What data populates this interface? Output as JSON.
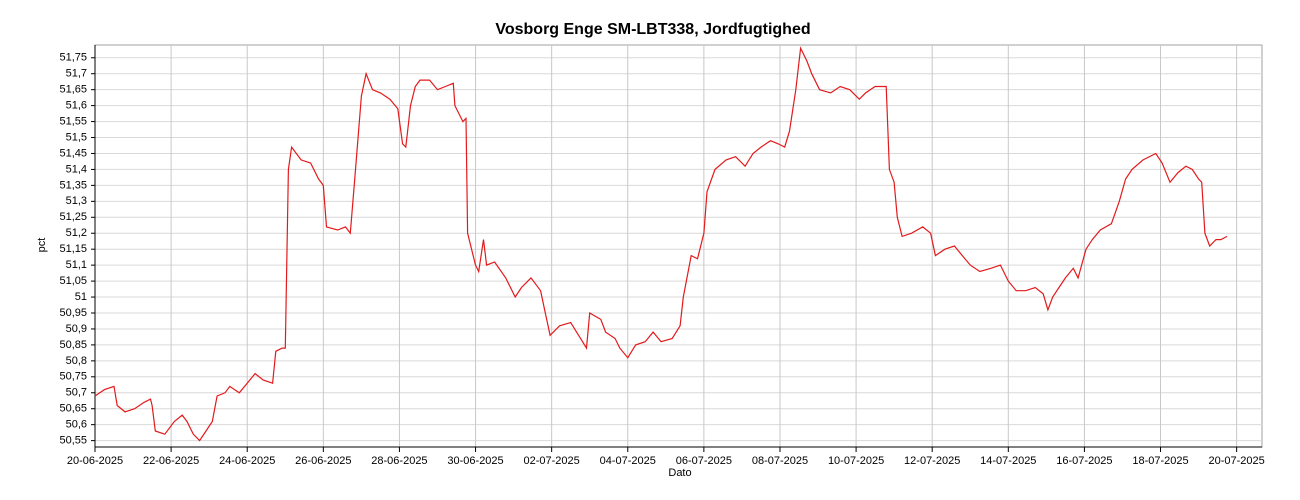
{
  "chart_data": {
    "type": "line",
    "title": "Vosborg Enge SM-LBT338, Jordfugtighed",
    "xlabel": "Dato",
    "ylabel": "pct",
    "grid": true,
    "xlim": [
      "2025-06-20T00:00",
      "2025-07-20T16:00"
    ],
    "ylim": [
      50.53,
      51.79
    ],
    "xticks": [
      {
        "value": "2025-06-20",
        "label": "20-06-2025"
      },
      {
        "value": "2025-06-22",
        "label": "22-06-2025"
      },
      {
        "value": "2025-06-24",
        "label": "24-06-2025"
      },
      {
        "value": "2025-06-26",
        "label": "26-06-2025"
      },
      {
        "value": "2025-06-28",
        "label": "28-06-2025"
      },
      {
        "value": "2025-06-30",
        "label": "30-06-2025"
      },
      {
        "value": "2025-07-02",
        "label": "02-07-2025"
      },
      {
        "value": "2025-07-04",
        "label": "04-07-2025"
      },
      {
        "value": "2025-07-06",
        "label": "06-07-2025"
      },
      {
        "value": "2025-07-08",
        "label": "08-07-2025"
      },
      {
        "value": "2025-07-10",
        "label": "10-07-2025"
      },
      {
        "value": "2025-07-12",
        "label": "12-07-2025"
      },
      {
        "value": "2025-07-14",
        "label": "14-07-2025"
      },
      {
        "value": "2025-07-16",
        "label": "16-07-2025"
      },
      {
        "value": "2025-07-18",
        "label": "18-07-2025"
      },
      {
        "value": "2025-07-20",
        "label": "20-07-2025"
      }
    ],
    "yticks": [
      {
        "value": 50.55,
        "label": "50,55"
      },
      {
        "value": 50.6,
        "label": "50,6"
      },
      {
        "value": 50.65,
        "label": "50,65"
      },
      {
        "value": 50.7,
        "label": "50,7"
      },
      {
        "value": 50.75,
        "label": "50,75"
      },
      {
        "value": 50.8,
        "label": "50,8"
      },
      {
        "value": 50.85,
        "label": "50,85"
      },
      {
        "value": 50.9,
        "label": "50,9"
      },
      {
        "value": 50.95,
        "label": "50,95"
      },
      51,
      {
        "value": 51.05,
        "label": "51,05"
      },
      {
        "value": 51.1,
        "label": "51,1"
      },
      {
        "value": 51.15,
        "label": "51,15"
      },
      {
        "value": 51.2,
        "label": "51,2"
      },
      {
        "value": 51.25,
        "label": "51,25"
      },
      {
        "value": 51.3,
        "label": "51,3"
      },
      {
        "value": 51.35,
        "label": "51,35"
      },
      {
        "value": 51.4,
        "label": "51,4"
      },
      {
        "value": 51.45,
        "label": "51,45"
      },
      {
        "value": 51.5,
        "label": "51,5"
      },
      {
        "value": 51.55,
        "label": "51,55"
      },
      {
        "value": 51.6,
        "label": "51,6"
      },
      {
        "value": 51.65,
        "label": "51,65"
      },
      {
        "value": 51.7,
        "label": "51,7"
      },
      {
        "value": 51.75,
        "label": "51,75"
      }
    ],
    "x": [
      "2025-06-20T00:00",
      "2025-06-20T06:00",
      "2025-06-20T12:00",
      "2025-06-20T14:00",
      "2025-06-20T19:00",
      "2025-06-21T01:00",
      "2025-06-21T07:00",
      "2025-06-21T11:00",
      "2025-06-21T12:00",
      "2025-06-21T14:00",
      "2025-06-21T20:00",
      "2025-06-22T02:00",
      "2025-06-22T07:00",
      "2025-06-22T10:00",
      "2025-06-22T14:00",
      "2025-06-22T18:00",
      "2025-06-22T22:00",
      "2025-06-23T02:00",
      "2025-06-23T05:00",
      "2025-06-23T10:00",
      "2025-06-23T13:00",
      "2025-06-23T19:00",
      "2025-06-24T00:00",
      "2025-06-24T05:00",
      "2025-06-24T10:00",
      "2025-06-24T16:00",
      "2025-06-24T18:00",
      "2025-06-24T22:00",
      "2025-06-25T00:00",
      "2025-06-25T02:00",
      "2025-06-25T04:00",
      "2025-06-25T10:00",
      "2025-06-25T16:00",
      "2025-06-25T21:00",
      "2025-06-26T00:00",
      "2025-06-26T02:00",
      "2025-06-26T09:00",
      "2025-06-26T14:00",
      "2025-06-26T17:00",
      "2025-06-26T20:00",
      "2025-06-27T00:00",
      "2025-06-27T03:00",
      "2025-06-27T07:00",
      "2025-06-27T12:00",
      "2025-06-27T18:00",
      "2025-06-27T23:00",
      "2025-06-28T02:00",
      "2025-06-28T04:00",
      "2025-06-28T07:00",
      "2025-06-28T10:00",
      "2025-06-28T13:00",
      "2025-06-28T19:00",
      "2025-06-29T00:00",
      "2025-06-29T05:00",
      "2025-06-29T10:00",
      "2025-06-29T11:00",
      "2025-06-29T16:00",
      "2025-06-29T18:00",
      "2025-06-29T19:00",
      "2025-06-30T00:00",
      "2025-06-30T02:00",
      "2025-06-30T05:00",
      "2025-06-30T07:00",
      "2025-06-30T12:00",
      "2025-06-30T19:00",
      "2025-07-01T01:00",
      "2025-07-01T05:00",
      "2025-07-01T11:00",
      "2025-07-01T17:00",
      "2025-07-01T20:00",
      "2025-07-01T23:00",
      "2025-07-02T05:00",
      "2025-07-02T12:00",
      "2025-07-02T17:00",
      "2025-07-02T22:00",
      "2025-07-03T00:00",
      "2025-07-03T07:00",
      "2025-07-03T10:00",
      "2025-07-03T16:00",
      "2025-07-03T19:00",
      "2025-07-04T00:00",
      "2025-07-04T05:00",
      "2025-07-04T11:00",
      "2025-07-04T16:00",
      "2025-07-04T21:00",
      "2025-07-05T04:00",
      "2025-07-05T09:00",
      "2025-07-05T11:00",
      "2025-07-05T16:00",
      "2025-07-05T20:00",
      "2025-07-06T00:00",
      "2025-07-06T02:00",
      "2025-07-06T07:00",
      "2025-07-06T14:00",
      "2025-07-06T20:00",
      "2025-07-07T02:00",
      "2025-07-07T07:00",
      "2025-07-07T12:00",
      "2025-07-07T18:00",
      "2025-07-07T23:00",
      "2025-07-08T03:00",
      "2025-07-08T06:00",
      "2025-07-08T10:00",
      "2025-07-08T13:00",
      "2025-07-08T17:00",
      "2025-07-08T20:00",
      "2025-07-09T01:00",
      "2025-07-09T08:00",
      "2025-07-09T14:00",
      "2025-07-09T20:00",
      "2025-07-10T02:00",
      "2025-07-10T06:00",
      "2025-07-10T12:00",
      "2025-07-10T19:00",
      "2025-07-10T21:00",
      "2025-07-11T00:00",
      "2025-07-11T02:00",
      "2025-07-11T05:00",
      "2025-07-11T11:00",
      "2025-07-11T18:00",
      "2025-07-11T23:00",
      "2025-07-12T02:00",
      "2025-07-12T08:00",
      "2025-07-12T14:00",
      "2025-07-12T19:00",
      "2025-07-13T00:00",
      "2025-07-13T06:00",
      "2025-07-13T13:00",
      "2025-07-13T19:00",
      "2025-07-14T00:00",
      "2025-07-14T05:00",
      "2025-07-14T11:00",
      "2025-07-14T17:00",
      "2025-07-14T22:00",
      "2025-07-15T01:00",
      "2025-07-15T04:00",
      "2025-07-15T08:00",
      "2025-07-15T12:00",
      "2025-07-15T17:00",
      "2025-07-15T20:00",
      "2025-07-16T01:00",
      "2025-07-16T05:00",
      "2025-07-16T10:00",
      "2025-07-16T17:00",
      "2025-07-16T22:00",
      "2025-07-17T02:00",
      "2025-07-17T06:00",
      "2025-07-17T13:00",
      "2025-07-17T21:00",
      "2025-07-18T01:00",
      "2025-07-18T06:00",
      "2025-07-18T11:00",
      "2025-07-18T16:00",
      "2025-07-18T20:00",
      "2025-07-19T00:00",
      "2025-07-19T02:00",
      "2025-07-19T04:00",
      "2025-07-19T07:00",
      "2025-07-19T11:00",
      "2025-07-19T14:00",
      "2025-07-19T18:00"
    ],
    "series": [
      {
        "name": "Jordfugtighed",
        "color": "#e31a1c",
        "values": [
          50.69,
          50.71,
          50.72,
          50.66,
          50.64,
          50.65,
          50.67,
          50.68,
          50.66,
          50.58,
          50.57,
          50.61,
          50.63,
          50.61,
          50.57,
          50.55,
          50.58,
          50.61,
          50.69,
          50.7,
          50.72,
          50.7,
          50.73,
          50.76,
          50.74,
          50.73,
          50.83,
          50.84,
          50.84,
          51.4,
          51.47,
          51.43,
          51.42,
          51.37,
          51.35,
          51.22,
          51.21,
          51.22,
          51.2,
          51.38,
          51.63,
          51.7,
          51.65,
          51.64,
          51.62,
          51.59,
          51.48,
          51.47,
          51.6,
          51.66,
          51.68,
          51.68,
          51.65,
          51.66,
          51.67,
          51.6,
          51.55,
          51.56,
          51.2,
          51.1,
          51.08,
          51.18,
          51.1,
          51.11,
          51.06,
          51.0,
          51.03,
          51.06,
          51.02,
          50.95,
          50.88,
          50.91,
          50.92,
          50.88,
          50.84,
          50.95,
          50.93,
          50.89,
          50.87,
          50.84,
          50.81,
          50.85,
          50.86,
          50.89,
          50.86,
          50.87,
          50.91,
          51.0,
          51.13,
          51.12,
          51.2,
          51.33,
          51.4,
          51.43,
          51.44,
          51.41,
          51.45,
          51.47,
          51.49,
          51.48,
          51.47,
          51.52,
          51.65,
          51.78,
          51.74,
          51.7,
          51.65,
          51.64,
          51.66,
          51.65,
          51.62,
          51.64,
          51.66,
          51.66,
          51.4,
          51.36,
          51.25,
          51.19,
          51.2,
          51.22,
          51.2,
          51.13,
          51.15,
          51.16,
          51.13,
          51.1,
          51.08,
          51.09,
          51.1,
          51.05,
          51.02,
          51.02,
          51.03,
          51.01,
          50.96,
          51.0,
          51.03,
          51.06,
          51.09,
          51.06,
          51.15,
          51.18,
          51.21,
          51.23,
          51.3,
          51.37,
          51.4,
          51.43,
          51.45,
          51.42,
          51.36,
          51.39,
          51.41,
          51.4,
          51.37,
          51.36,
          51.2,
          51.16,
          51.18,
          51.18,
          51.19
        ]
      }
    ]
  }
}
